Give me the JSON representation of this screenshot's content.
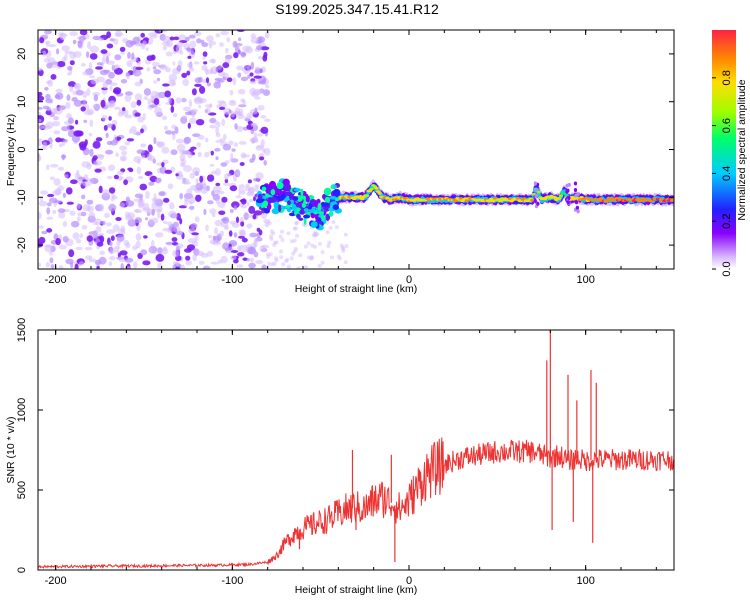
{
  "title": "S199.2025.347.15.41.R12",
  "chart_data": [
    {
      "type": "heatmap",
      "title": "S199.2025.347.15.41.R12",
      "xlabel": "Height of straight line (km)",
      "ylabel": "Frequency (Hz)",
      "xlim": [
        -210,
        150
      ],
      "ylim": [
        -25,
        25
      ],
      "xticks": [
        -200,
        -100,
        0,
        100
      ],
      "yticks": [
        -20,
        -10,
        0,
        10,
        20
      ],
      "colorbar": {
        "label": "Normalized spectral amplitude",
        "range": [
          0,
          1
        ],
        "ticks": [
          "0.0",
          "0.2",
          "0.4",
          "0.6",
          "0.8"
        ],
        "tick_values": [
          0.0,
          0.2,
          0.4,
          0.6,
          0.8
        ],
        "colors": [
          "#ffffff",
          "#d8b8ff",
          "#8800ff",
          "#2222ff",
          "#00ccff",
          "#00ff66",
          "#99ff00",
          "#ffdd00",
          "#ff8800",
          "#ff2244"
        ]
      },
      "noise_region": {
        "x_range": [
          -210,
          -80
        ],
        "freq_range": [
          -25,
          25
        ]
      },
      "signal_ridge": {
        "x": [
          -85,
          -80,
          -75,
          -70,
          -65,
          -60,
          -55,
          -50,
          -45,
          -40,
          -35,
          -30,
          -25,
          -20,
          -15,
          -10,
          -5,
          0,
          10,
          20,
          30,
          40,
          50,
          60,
          70,
          72,
          75,
          80,
          85,
          88,
          90,
          95,
          100,
          110,
          120,
          130,
          140,
          150
        ],
        "freq": [
          -10,
          -10.5,
          -10,
          -9.5,
          -11,
          -12,
          -12.5,
          -14,
          -11,
          -10,
          -10,
          -10,
          -10,
          -7.5,
          -10,
          -10.5,
          -10,
          -10.5,
          -10.5,
          -10.5,
          -10.5,
          -10.5,
          -10.5,
          -10.5,
          -10.5,
          -8,
          -10.5,
          -10,
          -10.5,
          -8.5,
          -10.5,
          -10,
          -10.5,
          -10.5,
          -10.5,
          -10.5,
          -10.5,
          -10.5
        ],
        "amplitude": [
          0.2,
          0.3,
          0.35,
          0.4,
          0.3,
          0.3,
          0.25,
          0.2,
          0.3,
          0.8,
          0.9,
          0.85,
          0.8,
          0.7,
          0.9,
          0.85,
          0.85,
          0.85,
          0.85,
          0.9,
          0.85,
          0.85,
          0.8,
          0.85,
          0.85,
          0.5,
          0.8,
          0.8,
          0.8,
          0.5,
          0.8,
          0.85,
          0.9,
          0.95,
          0.95,
          0.95,
          0.95,
          0.95
        ]
      }
    },
    {
      "type": "line",
      "xlabel": "Height of straight line (km)",
      "ylabel": "SNR (10 * v/v)",
      "xlim": [
        -210,
        150
      ],
      "ylim": [
        0,
        1500
      ],
      "xticks": [
        -200,
        -100,
        0,
        100
      ],
      "yticks": [
        0,
        500,
        1000,
        1500
      ],
      "color": "#ee3333",
      "x": [
        -210,
        -190,
        -170,
        -150,
        -130,
        -110,
        -90,
        -80,
        -75,
        -70,
        -65,
        -60,
        -55,
        -50,
        -45,
        -40,
        -35,
        -30,
        -25,
        -20,
        -15,
        -10,
        -5,
        0,
        5,
        10,
        20,
        30,
        40,
        50,
        60,
        70,
        75,
        80,
        85,
        90,
        95,
        100,
        105,
        110,
        120,
        130,
        140,
        150
      ],
      "y": [
        20,
        22,
        25,
        25,
        28,
        30,
        35,
        50,
        90,
        170,
        230,
        260,
        280,
        300,
        320,
        350,
        380,
        390,
        380,
        430,
        450,
        420,
        380,
        430,
        520,
        600,
        660,
        700,
        720,
        740,
        740,
        740,
        720,
        700,
        720,
        680,
        700,
        680,
        690,
        690,
        690,
        690,
        690,
        690
      ],
      "spikes": [
        {
          "x": -62,
          "y": 130
        },
        {
          "x": -32,
          "y": 750
        },
        {
          "x": -30,
          "y": 250
        },
        {
          "x": -10,
          "y": 720
        },
        {
          "x": -8,
          "y": 50
        },
        {
          "x": 78,
          "y": 1310
        },
        {
          "x": 80,
          "y": 1500
        },
        {
          "x": 81,
          "y": 250
        },
        {
          "x": 90,
          "y": 1220
        },
        {
          "x": 93,
          "y": 300
        },
        {
          "x": 95,
          "y": 1060
        },
        {
          "x": 103,
          "y": 1250
        },
        {
          "x": 104,
          "y": 170
        },
        {
          "x": 106,
          "y": 1170
        }
      ]
    }
  ]
}
